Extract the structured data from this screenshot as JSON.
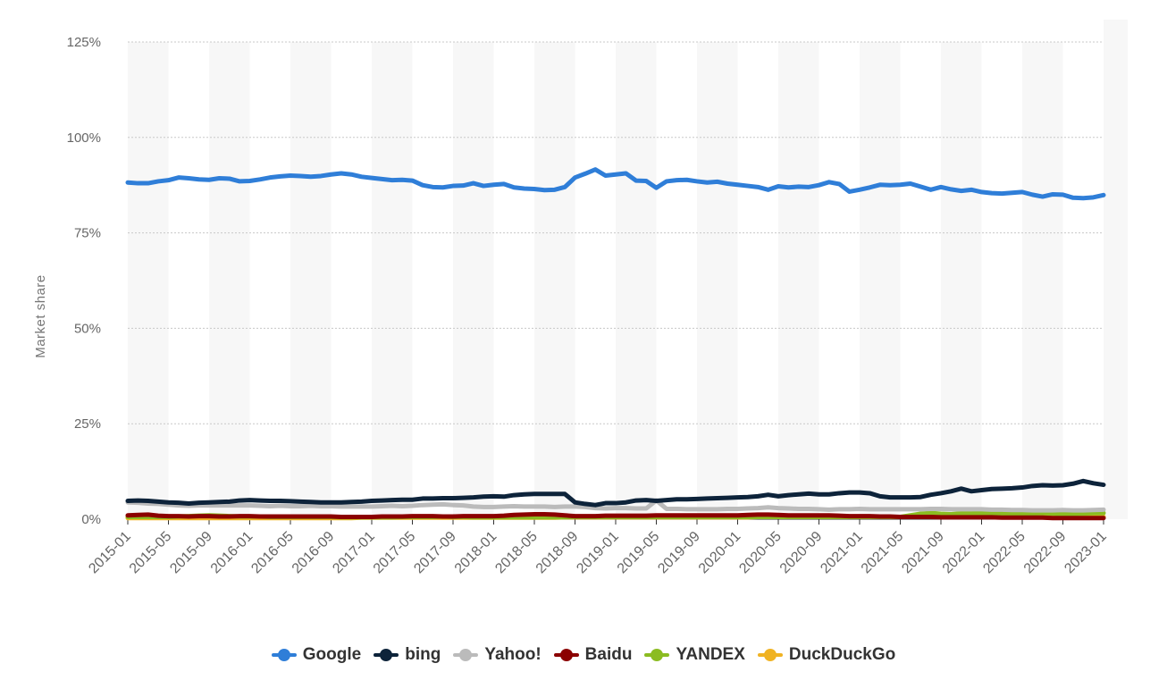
{
  "chart_data": {
    "type": "line",
    "ylabel": "Market share",
    "xlabel": "",
    "ylim": [
      0,
      125
    ],
    "y_ticks": [
      {
        "value": 0,
        "label": "0%"
      },
      {
        "value": 25,
        "label": "25%"
      },
      {
        "value": 50,
        "label": "50%"
      },
      {
        "value": 75,
        "label": "75%"
      },
      {
        "value": 100,
        "label": "100%"
      },
      {
        "value": 125,
        "label": "125%"
      }
    ],
    "x_tick_labels": [
      "2015-01",
      "2015-05",
      "2015-09",
      "2016-01",
      "2016-05",
      "2016-09",
      "2017-01",
      "2017-05",
      "2017-09",
      "2018-01",
      "2018-05",
      "2018-09",
      "2019-01",
      "2019-05",
      "2019-09",
      "2020-01",
      "2020-05",
      "2020-09",
      "2021-01",
      "2021-05",
      "2021-09",
      "2022-01",
      "2022-05",
      "2022-09",
      "2023-01"
    ],
    "x_start": "2015-01",
    "x_end": "2023-01",
    "grid": true,
    "legend_position": "bottom",
    "series": [
      {
        "name": "Google",
        "color": "#2f7ed8",
        "values": [
          88.2,
          88.0,
          88.0,
          88.5,
          88.8,
          89.5,
          89.3,
          89.0,
          88.9,
          89.3,
          89.2,
          88.5,
          88.6,
          89.0,
          89.5,
          89.8,
          90.0,
          89.9,
          89.7,
          89.9,
          90.3,
          90.6,
          90.3,
          89.7,
          89.4,
          89.1,
          88.8,
          88.9,
          88.7,
          87.5,
          87.0,
          86.9,
          87.3,
          87.4,
          88.0,
          87.3,
          87.6,
          87.8,
          86.9,
          86.6,
          86.5,
          86.2,
          86.3,
          87.0,
          89.5,
          90.5,
          91.6,
          90.0,
          90.3,
          90.6,
          88.7,
          88.6,
          86.8,
          88.5,
          88.8,
          88.9,
          88.5,
          88.2,
          88.4,
          87.9,
          87.6,
          87.3,
          87.0,
          86.3,
          87.2,
          86.9,
          87.1,
          87.0,
          87.5,
          88.3,
          87.8,
          85.8,
          86.3,
          86.9,
          87.6,
          87.5,
          87.6,
          87.9,
          87.1,
          86.3,
          87.0,
          86.4,
          86.0,
          86.3,
          85.7,
          85.4,
          85.3,
          85.5,
          85.7,
          85.0,
          84.5,
          85.1,
          85.0,
          84.2,
          84.1,
          84.3,
          84.9
        ]
      },
      {
        "name": "bing",
        "color": "#0d233a",
        "values": [
          4.8,
          4.9,
          4.8,
          4.6,
          4.4,
          4.3,
          4.1,
          4.3,
          4.4,
          4.5,
          4.6,
          4.9,
          5.0,
          4.9,
          4.8,
          4.8,
          4.7,
          4.6,
          4.5,
          4.4,
          4.4,
          4.4,
          4.5,
          4.6,
          4.8,
          4.9,
          5.0,
          5.1,
          5.1,
          5.4,
          5.4,
          5.5,
          5.5,
          5.6,
          5.7,
          5.9,
          6.0,
          5.9,
          6.3,
          6.5,
          6.6,
          6.6,
          6.6,
          6.6,
          4.4,
          4.0,
          3.7,
          4.2,
          4.2,
          4.4,
          4.9,
          5.0,
          4.8,
          5.0,
          5.2,
          5.2,
          5.3,
          5.4,
          5.5,
          5.6,
          5.7,
          5.8,
          6.0,
          6.4,
          6.0,
          6.3,
          6.5,
          6.7,
          6.5,
          6.5,
          6.8,
          7.0,
          7.0,
          6.8,
          6.0,
          5.7,
          5.7,
          5.7,
          5.8,
          6.4,
          6.8,
          7.3,
          8.0,
          7.3,
          7.6,
          7.9,
          8.0,
          8.1,
          8.3,
          8.7,
          8.9,
          8.8,
          8.9,
          9.3,
          10.0,
          9.4,
          9.0
        ]
      },
      {
        "name": "Yahoo!",
        "color": "#bbbbbb",
        "values": [
          4.4,
          4.3,
          4.1,
          4.0,
          3.8,
          3.6,
          3.5,
          3.6,
          3.6,
          3.6,
          3.6,
          3.6,
          3.6,
          3.5,
          3.4,
          3.5,
          3.4,
          3.4,
          3.5,
          3.4,
          3.4,
          3.3,
          3.3,
          3.3,
          3.3,
          3.4,
          3.5,
          3.4,
          3.5,
          3.7,
          3.8,
          3.9,
          3.7,
          3.6,
          3.3,
          3.2,
          3.2,
          3.3,
          3.4,
          3.3,
          3.3,
          3.3,
          3.2,
          3.3,
          3.3,
          3.2,
          2.9,
          2.8,
          2.9,
          2.9,
          2.8,
          2.8,
          4.9,
          2.7,
          2.7,
          2.6,
          2.6,
          2.6,
          2.6,
          2.7,
          2.7,
          2.8,
          2.9,
          3.1,
          2.9,
          2.8,
          2.7,
          2.7,
          2.6,
          2.5,
          2.6,
          2.6,
          2.7,
          2.6,
          2.6,
          2.6,
          2.6,
          2.6,
          2.6,
          2.7,
          2.7,
          2.6,
          2.6,
          2.6,
          2.6,
          2.5,
          2.5,
          2.4,
          2.4,
          2.3,
          2.3,
          2.3,
          2.4,
          2.3,
          2.3,
          2.4,
          2.5
        ]
      },
      {
        "name": "Baidu",
        "color": "#8b0000",
        "values": [
          1.0,
          1.1,
          1.2,
          0.9,
          0.8,
          0.8,
          0.7,
          0.8,
          0.8,
          0.7,
          0.7,
          0.8,
          0.8,
          0.7,
          0.7,
          0.7,
          0.7,
          0.7,
          0.7,
          0.7,
          0.7,
          0.6,
          0.6,
          0.6,
          0.6,
          0.7,
          0.7,
          0.7,
          0.8,
          0.8,
          0.8,
          0.7,
          0.7,
          0.8,
          0.8,
          0.8,
          0.8,
          0.9,
          1.1,
          1.2,
          1.3,
          1.3,
          1.2,
          1.0,
          0.8,
          0.8,
          0.8,
          0.9,
          0.9,
          0.9,
          0.9,
          0.9,
          1.0,
          1.0,
          1.0,
          1.0,
          1.0,
          1.0,
          1.0,
          1.0,
          1.0,
          1.1,
          1.2,
          1.2,
          1.1,
          1.0,
          1.0,
          1.0,
          1.0,
          1.0,
          0.9,
          0.8,
          0.8,
          0.8,
          0.7,
          0.7,
          0.6,
          0.6,
          0.6,
          0.6,
          0.5,
          0.5,
          0.5,
          0.5,
          0.5,
          0.5,
          0.4,
          0.4,
          0.4,
          0.4,
          0.4,
          0.3,
          0.3,
          0.3,
          0.3,
          0.3,
          0.3
        ]
      },
      {
        "name": "YANDEX",
        "color": "#8bbc21",
        "values": [
          0.6,
          0.6,
          0.6,
          0.6,
          0.6,
          0.7,
          0.8,
          0.9,
          1.0,
          0.9,
          0.8,
          0.7,
          0.7,
          0.7,
          0.6,
          0.6,
          0.6,
          0.6,
          0.6,
          0.6,
          0.6,
          0.5,
          0.5,
          0.5,
          0.5,
          0.5,
          0.5,
          0.6,
          0.6,
          0.6,
          0.6,
          0.7,
          0.6,
          0.6,
          0.5,
          0.5,
          0.5,
          0.5,
          0.5,
          0.5,
          0.5,
          0.5,
          0.5,
          0.5,
          0.6,
          0.6,
          0.6,
          0.6,
          0.6,
          0.6,
          0.6,
          0.6,
          0.6,
          0.6,
          0.6,
          0.6,
          0.6,
          0.6,
          0.6,
          0.6,
          0.6,
          0.6,
          0.6,
          0.6,
          0.6,
          0.6,
          0.6,
          0.6,
          0.6,
          0.6,
          0.6,
          0.6,
          0.6,
          0.6,
          0.6,
          0.6,
          0.6,
          1.0,
          1.4,
          1.6,
          1.4,
          1.3,
          1.5,
          1.5,
          1.6,
          1.5,
          1.4,
          1.3,
          1.3,
          1.5,
          1.6,
          1.5,
          1.3,
          1.4,
          1.5,
          1.6,
          1.6
        ]
      },
      {
        "name": "DuckDuckGo",
        "color": "#f0b323",
        "values": [
          0.3,
          0.3,
          0.3,
          0.3,
          0.3,
          0.3,
          0.3,
          0.3,
          0.3,
          0.3,
          0.3,
          0.3,
          0.3,
          0.3,
          0.3,
          0.3,
          0.3,
          0.3,
          0.3,
          0.3,
          0.3,
          0.3,
          0.3,
          0.4,
          0.4,
          0.4,
          0.4,
          0.4,
          0.4,
          0.4,
          0.4,
          0.4,
          0.4,
          0.4,
          0.4,
          0.4,
          0.4,
          0.4,
          0.4,
          0.4,
          0.4,
          0.4,
          0.4,
          0.5,
          0.5,
          0.5,
          0.5,
          0.5,
          0.5,
          0.5,
          0.5,
          0.5,
          0.5,
          0.5,
          0.5,
          0.5,
          0.5,
          0.5,
          0.5,
          0.5,
          0.5,
          0.5,
          0.6,
          0.6,
          0.6,
          0.6,
          0.6,
          0.6,
          0.6,
          0.6,
          0.6,
          0.6,
          0.6,
          0.6,
          0.6,
          0.6,
          0.6,
          0.6,
          0.6,
          0.6,
          0.6,
          0.6,
          0.6,
          0.6,
          0.6,
          0.6,
          0.6,
          0.6,
          0.6,
          0.6,
          0.6,
          0.6,
          0.6,
          0.6,
          0.6,
          0.6,
          0.6
        ]
      }
    ]
  }
}
